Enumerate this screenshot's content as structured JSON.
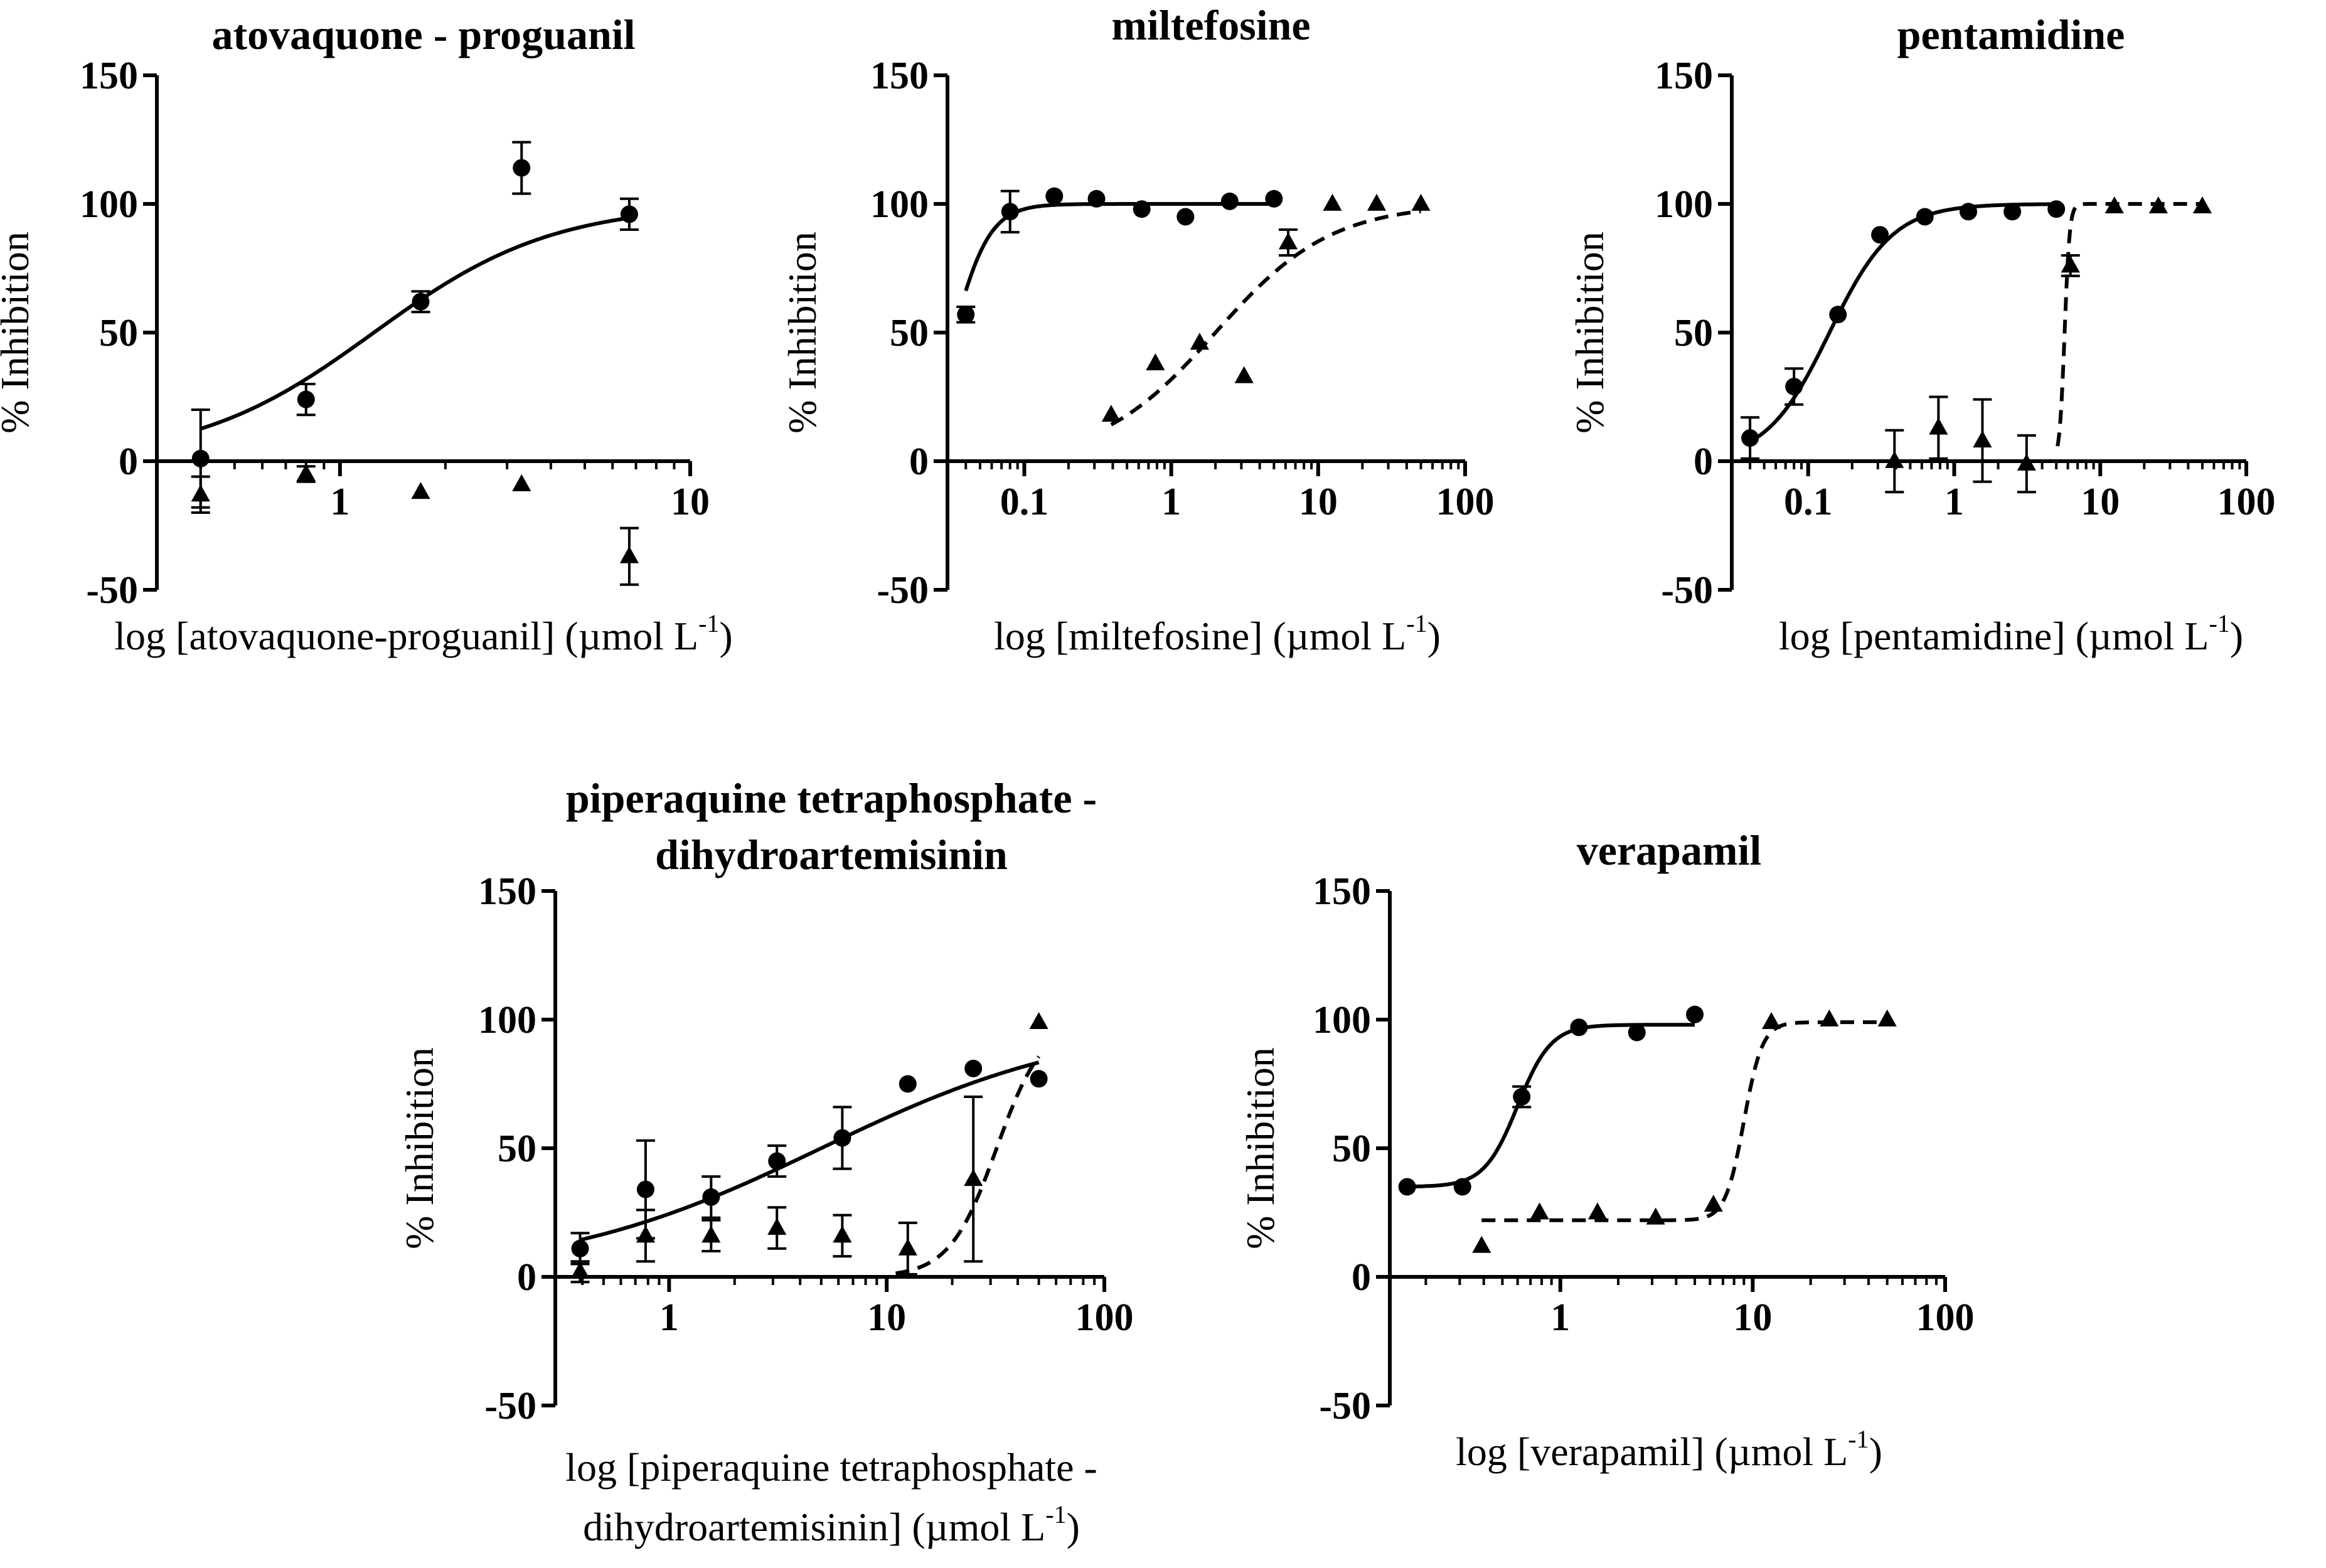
{
  "figure": {
    "description_free": true
  },
  "chart_data": [
    {
      "type": "scatter",
      "panel_id": "p1",
      "title_lines": [
        "atovaquone - proguanil"
      ],
      "xlabel_lines": [
        {
          "main": "log [atovaquone-proguanil] (µmol L",
          "sup": "-1",
          "tail": ")"
        }
      ],
      "ylabel": "% Inhibition",
      "xscale": "log",
      "xlim": [
        0.3,
        10
      ],
      "ylim": [
        -50,
        150
      ],
      "x_ticks": [
        {
          "v": 1,
          "label": "1"
        },
        {
          "v": 10,
          "label": "10"
        }
      ],
      "y_ticks": [
        {
          "v": -50,
          "label": "-50"
        },
        {
          "v": 0,
          "label": "0"
        },
        {
          "v": 50,
          "label": "50"
        },
        {
          "v": 100,
          "label": "100"
        },
        {
          "v": 150,
          "label": "150"
        }
      ],
      "series": [
        {
          "name": "circles",
          "marker": "circle",
          "points": [
            [
              0.4,
              1,
              19
            ],
            [
              0.8,
              24,
              6
            ],
            [
              1.7,
              62,
              4
            ],
            [
              3.3,
              114,
              10
            ],
            [
              6.7,
              96,
              6
            ]
          ],
          "curve": {
            "style": "solid",
            "bottom": 0,
            "top": 100,
            "ec50": 1.25,
            "hill": 1.7,
            "x_range": [
              0.4,
              6.7
            ]
          }
        },
        {
          "name": "triangles",
          "marker": "triangle",
          "points": [
            [
              0.4,
              -13,
              7
            ],
            [
              0.8,
              -5,
              3
            ],
            [
              1.7,
              -12,
              0
            ],
            [
              3.3,
              -9,
              0
            ],
            [
              6.7,
              -37,
              11
            ]
          ],
          "curve": null
        }
      ]
    },
    {
      "type": "scatter",
      "panel_id": "p2",
      "title_lines": [
        "miltefosine"
      ],
      "xlabel_lines": [
        {
          "main": "log [miltefosine] (µmol L",
          "sup": "-1",
          "tail": ")"
        }
      ],
      "ylabel": "% Inhibition",
      "xscale": "log",
      "xlim": [
        0.03,
        100
      ],
      "ylim": [
        -50,
        150
      ],
      "x_ticks": [
        {
          "v": 0.1,
          "label": "0.1"
        },
        {
          "v": 1,
          "label": "1"
        },
        {
          "v": 10,
          "label": "10"
        },
        {
          "v": 100,
          "label": "100"
        }
      ],
      "y_ticks": [
        {
          "v": -50,
          "label": "-50"
        },
        {
          "v": 0,
          "label": "0"
        },
        {
          "v": 50,
          "label": "50"
        },
        {
          "v": 100,
          "label": "100"
        },
        {
          "v": 150,
          "label": "150"
        }
      ],
      "series": [
        {
          "name": "circles",
          "marker": "circle",
          "points": [
            [
              0.04,
              57,
              3
            ],
            [
              0.08,
              97,
              8
            ],
            [
              0.16,
              103,
              0
            ],
            [
              0.31,
              102,
              0
            ],
            [
              0.63,
              98,
              0
            ],
            [
              1.25,
              95,
              0
            ],
            [
              2.5,
              101,
              0
            ],
            [
              5,
              102,
              0
            ]
          ],
          "curve": {
            "style": "solid",
            "bottom": 0,
            "top": 100,
            "ec50": 0.033,
            "hill": 3.5,
            "x_range": [
              0.04,
              5
            ]
          }
        },
        {
          "name": "triangles",
          "marker": "triangle",
          "points": [
            [
              0.39,
              18,
              0
            ],
            [
              0.78,
              38,
              0
            ],
            [
              1.56,
              46,
              0
            ],
            [
              3.13,
              33,
              0
            ],
            [
              6.25,
              85,
              5
            ],
            [
              12.5,
              100,
              0
            ],
            [
              25,
              100,
              0
            ],
            [
              50,
              100,
              0
            ]
          ],
          "curve": {
            "style": "dashed",
            "bottom": 0,
            "top": 100,
            "ec50": 2.0,
            "hill": 1.1,
            "x_range": [
              0.39,
              50
            ]
          }
        }
      ]
    },
    {
      "type": "scatter",
      "panel_id": "p3",
      "title_lines": [
        "pentamidine"
      ],
      "xlabel_lines": [
        {
          "main": "log [pentamidine] (µmol L",
          "sup": "-1",
          "tail": ")"
        }
      ],
      "ylabel": "% Inhibition",
      "xscale": "log",
      "xlim": [
        0.03,
        100
      ],
      "ylim": [
        -50,
        150
      ],
      "x_ticks": [
        {
          "v": 0.1,
          "label": "0.1"
        },
        {
          "v": 1,
          "label": "1"
        },
        {
          "v": 10,
          "label": "10"
        },
        {
          "v": 100,
          "label": "100"
        }
      ],
      "y_ticks": [
        {
          "v": -50,
          "label": "-50"
        },
        {
          "v": 0,
          "label": "0"
        },
        {
          "v": 50,
          "label": "50"
        },
        {
          "v": 100,
          "label": "100"
        },
        {
          "v": 150,
          "label": "150"
        }
      ],
      "series": [
        {
          "name": "circles",
          "marker": "circle",
          "points": [
            [
              0.04,
              9,
              8
            ],
            [
              0.08,
              29,
              7
            ],
            [
              0.16,
              57,
              0
            ],
            [
              0.31,
              88,
              0
            ],
            [
              0.63,
              95,
              0
            ],
            [
              1.25,
              97,
              0
            ],
            [
              2.5,
              97,
              0
            ],
            [
              5,
              98,
              0
            ]
          ],
          "curve": {
            "style": "solid",
            "bottom": 0,
            "top": 100,
            "ec50": 0.14,
            "hill": 2.0,
            "x_range": [
              0.04,
              5
            ]
          }
        },
        {
          "name": "triangles",
          "marker": "triangle",
          "points": [
            [
              0.39,
              0,
              12
            ],
            [
              0.78,
              13,
              12
            ],
            [
              1.56,
              8,
              16
            ],
            [
              3.13,
              -1,
              11
            ],
            [
              6.25,
              76,
              4
            ],
            [
              12.5,
              99,
              0
            ],
            [
              25,
              99,
              0
            ],
            [
              50,
              99,
              0
            ]
          ],
          "curve": {
            "style": "dashed",
            "bottom": 0,
            "top": 100,
            "ec50": 5.7,
            "hill": 25,
            "x_range": [
              5.1,
              50
            ]
          }
        }
      ]
    },
    {
      "type": "scatter",
      "panel_id": "p4",
      "title_lines": [
        "piperaquine tetraphosphate -",
        "dihydroartemisinin"
      ],
      "xlabel_lines": [
        {
          "main": "log [piperaquine tetraphosphate -",
          "sup": "",
          "tail": ""
        },
        {
          "main": "dihydroartemisinin] (µmol L",
          "sup": "-1",
          "tail": ")"
        }
      ],
      "ylabel": "% Inhibition",
      "xscale": "log",
      "xlim": [
        0.3,
        100
      ],
      "ylim": [
        -50,
        150
      ],
      "x_ticks": [
        {
          "v": 1,
          "label": "1"
        },
        {
          "v": 10,
          "label": "10"
        },
        {
          "v": 100,
          "label": "100"
        }
      ],
      "y_ticks": [
        {
          "v": -50,
          "label": "-50"
        },
        {
          "v": 0,
          "label": "0"
        },
        {
          "v": 50,
          "label": "50"
        },
        {
          "v": 100,
          "label": "100"
        },
        {
          "v": 150,
          "label": "150"
        }
      ],
      "series": [
        {
          "name": "circles",
          "marker": "circle",
          "points": [
            [
              0.39,
              11,
              6
            ],
            [
              0.78,
              34,
              19
            ],
            [
              1.56,
              31,
              8
            ],
            [
              3.13,
              45,
              6
            ],
            [
              6.25,
              54,
              12
            ],
            [
              12.5,
              75,
              0
            ],
            [
              25,
              81,
              0
            ],
            [
              50,
              77,
              0
            ]
          ],
          "curve": {
            "style": "solid",
            "bottom": 0,
            "top": 100,
            "ec50": 5.0,
            "hill": 0.7,
            "x_range": [
              0.39,
              50
            ]
          }
        },
        {
          "name": "triangles",
          "marker": "triangle",
          "points": [
            [
              0.39,
              2,
              4
            ],
            [
              0.78,
              16,
              10
            ],
            [
              1.56,
              16,
              6
            ],
            [
              3.13,
              19,
              8
            ],
            [
              6.25,
              16,
              8
            ],
            [
              12.5,
              11,
              10
            ],
            [
              25,
              38,
              32
            ],
            [
              50,
              99,
              0
            ]
          ],
          "curve": {
            "style": "dashed",
            "bottom": 0,
            "top": 100,
            "ec50": 32,
            "hill": 4,
            "x_range": [
              11,
              50
            ]
          }
        }
      ]
    },
    {
      "type": "scatter",
      "panel_id": "p5",
      "title_lines": [
        "verapamil"
      ],
      "xlabel_lines": [
        {
          "main": "log [verapamil] (µmol L",
          "sup": "-1",
          "tail": ")"
        }
      ],
      "ylabel": "% Inhibition",
      "xscale": "log",
      "xlim": [
        0.13,
        100
      ],
      "ylim": [
        -50,
        150
      ],
      "x_ticks": [
        {
          "v": 1,
          "label": "1"
        },
        {
          "v": 10,
          "label": "10"
        },
        {
          "v": 100,
          "label": "100"
        }
      ],
      "y_ticks": [
        {
          "v": -50,
          "label": "-50"
        },
        {
          "v": 0,
          "label": "0"
        },
        {
          "v": 50,
          "label": "50"
        },
        {
          "v": 100,
          "label": "100"
        },
        {
          "v": 150,
          "label": "150"
        }
      ],
      "series": [
        {
          "name": "circles",
          "marker": "circle",
          "points": [
            [
              0.16,
              35,
              0
            ],
            [
              0.31,
              35,
              0
            ],
            [
              0.63,
              70,
              4
            ],
            [
              1.25,
              97,
              0
            ],
            [
              2.5,
              95,
              0
            ],
            [
              5,
              102,
              0
            ]
          ],
          "curve": {
            "style": "solid",
            "bottom": 35,
            "top": 98,
            "ec50": 0.6,
            "hill": 5,
            "x_range": [
              0.16,
              5
            ]
          }
        },
        {
          "name": "triangles",
          "marker": "triangle",
          "points": [
            [
              0.39,
              12,
              0
            ],
            [
              0.78,
              25,
              0
            ],
            [
              1.56,
              25,
              0
            ],
            [
              3.13,
              23,
              0
            ],
            [
              6.25,
              28,
              0
            ],
            [
              12.5,
              99,
              0
            ],
            [
              25,
              100,
              0
            ],
            [
              50,
              100,
              0
            ]
          ],
          "curve": {
            "style": "dashed",
            "bottom": 22,
            "top": 99,
            "ec50": 9.0,
            "hill": 9,
            "x_range": [
              0.39,
              50
            ]
          }
        }
      ]
    }
  ]
}
